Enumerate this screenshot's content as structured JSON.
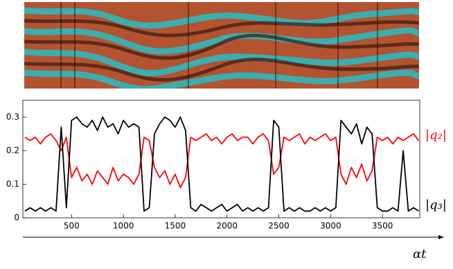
{
  "chart_data": {
    "type": "line",
    "x_label": "αt",
    "x": [
      50,
      100,
      150,
      200,
      250,
      300,
      350,
      400,
      450,
      500,
      550,
      600,
      650,
      700,
      750,
      800,
      850,
      900,
      950,
      1000,
      1050,
      1100,
      1150,
      1200,
      1250,
      1300,
      1350,
      1400,
      1450,
      1500,
      1550,
      1600,
      1650,
      1700,
      1750,
      1800,
      1850,
      1900,
      1950,
      2000,
      2050,
      2100,
      2150,
      2200,
      2250,
      2300,
      2350,
      2400,
      2450,
      2500,
      2550,
      2600,
      2650,
      2700,
      2750,
      2800,
      2850,
      2900,
      2950,
      3000,
      3050,
      3100,
      3150,
      3200,
      3250,
      3300,
      3350,
      3400,
      3450,
      3500,
      3550,
      3600,
      3650,
      3700,
      3750,
      3800,
      3850
    ],
    "series": [
      {
        "name": "|q₂|",
        "color": "#ff0000",
        "values": [
          0.24,
          0.23,
          0.24,
          0.22,
          0.24,
          0.25,
          0.23,
          0.2,
          0.24,
          0.12,
          0.15,
          0.11,
          0.13,
          0.1,
          0.14,
          0.12,
          0.1,
          0.15,
          0.11,
          0.13,
          0.12,
          0.1,
          0.13,
          0.24,
          0.23,
          0.15,
          0.12,
          0.14,
          0.1,
          0.13,
          0.09,
          0.12,
          0.24,
          0.23,
          0.24,
          0.25,
          0.23,
          0.24,
          0.22,
          0.24,
          0.25,
          0.23,
          0.24,
          0.24,
          0.22,
          0.24,
          0.25,
          0.23,
          0.13,
          0.15,
          0.24,
          0.23,
          0.24,
          0.25,
          0.22,
          0.24,
          0.23,
          0.24,
          0.25,
          0.23,
          0.24,
          0.13,
          0.1,
          0.15,
          0.12,
          0.16,
          0.11,
          0.14,
          0.24,
          0.23,
          0.24,
          0.22,
          0.24,
          0.23,
          0.24,
          0.25,
          0.23
        ]
      },
      {
        "name": "|q₃|",
        "color": "#000000",
        "values": [
          0.02,
          0.03,
          0.02,
          0.03,
          0.02,
          0.03,
          0.02,
          0.27,
          0.03,
          0.29,
          0.3,
          0.28,
          0.27,
          0.29,
          0.26,
          0.3,
          0.27,
          0.28,
          0.25,
          0.29,
          0.27,
          0.28,
          0.27,
          0.02,
          0.03,
          0.25,
          0.28,
          0.3,
          0.29,
          0.27,
          0.3,
          0.26,
          0.03,
          0.02,
          0.04,
          0.03,
          0.02,
          0.03,
          0.04,
          0.02,
          0.03,
          0.04,
          0.02,
          0.03,
          0.02,
          0.03,
          0.02,
          0.03,
          0.29,
          0.27,
          0.02,
          0.03,
          0.02,
          0.03,
          0.02,
          0.02,
          0.03,
          0.02,
          0.03,
          0.02,
          0.03,
          0.29,
          0.27,
          0.25,
          0.28,
          0.22,
          0.27,
          0.25,
          0.03,
          0.02,
          0.02,
          0.03,
          0.02,
          0.2,
          0.02,
          0.03,
          0.02
        ]
      }
    ],
    "xlim": [
      30,
      3860
    ],
    "ylim": [
      0,
      0.35
    ],
    "xticks": [
      500,
      1000,
      1500,
      2000,
      2500,
      3000,
      3500
    ],
    "yticks": [
      0,
      0.1,
      0.2,
      0.3
    ]
  }
}
